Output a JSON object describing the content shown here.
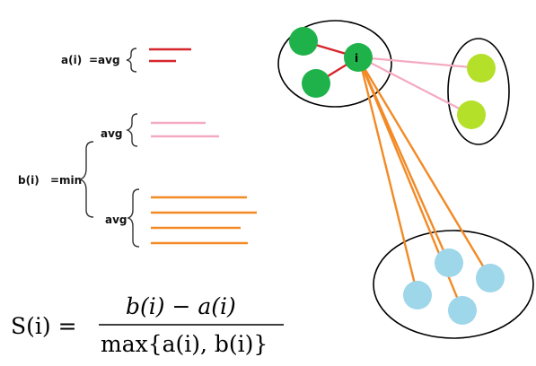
{
  "formula_left": {
    "a_label": "a(i)",
    "a_eq": "=avg",
    "b_label": "b(i)",
    "b_eq": "=min",
    "avg_top": "avg",
    "avg_bottom": "avg"
  },
  "formula": {
    "lhs": "S(i) =",
    "numerator": "b(i) − a(i)",
    "denominator": "max{a(i), b(i)}"
  },
  "nodes": {
    "focus_label": "i"
  },
  "colors": {
    "intra_cluster_line": "#d6262c",
    "near_cluster_line": "#f4aac0",
    "far_cluster_line": "#f28a26",
    "node_green": "#1fb24a",
    "node_lime": "#b5e02a",
    "node_blue": "#9ed6ea",
    "ellipse_stroke": "#000000"
  },
  "legend_lines": {
    "a_count": 2,
    "b_near_count": 2,
    "b_far_count": 4
  }
}
